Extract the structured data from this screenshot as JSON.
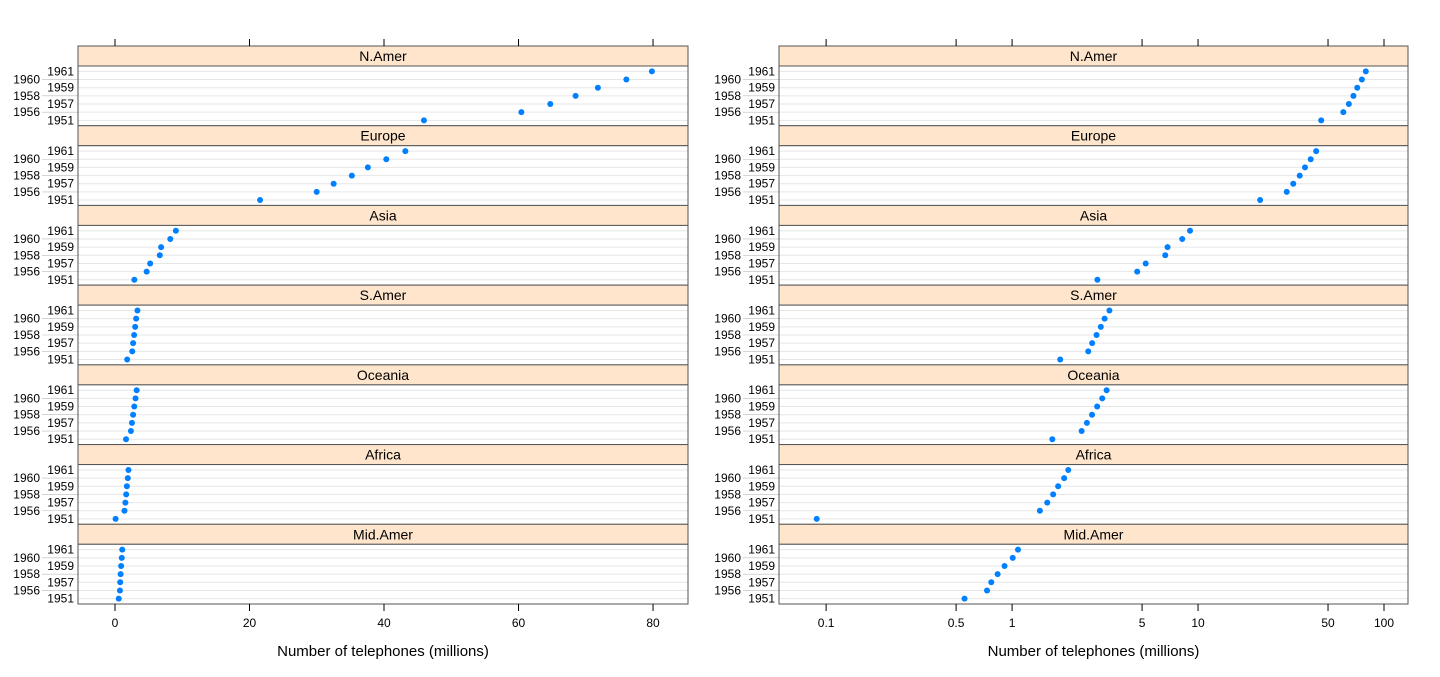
{
  "chart_data": [
    {
      "type": "scatter",
      "subtype": "dotplot",
      "scale": "linear",
      "xlabel": "Number of telephones (millions)",
      "xlim": [
        -5.5,
        85.2
      ],
      "xticks": [
        0,
        20,
        40,
        60,
        80
      ],
      "xtick_labels": [
        "0",
        "20",
        "40",
        "60",
        "80"
      ],
      "grid": "horizontal row lines",
      "panels": [
        "N.Amer",
        "Europe",
        "Asia",
        "S.Amer",
        "Oceania",
        "Africa",
        "Mid.Amer"
      ]
    },
    {
      "type": "scatter",
      "subtype": "dotplot",
      "scale": "log10",
      "xlabel": "Number of telephones (millions)",
      "xlim": [
        0.0558,
        134.6
      ],
      "xticks": [
        0.1,
        0.5,
        1,
        5,
        10,
        50,
        100
      ],
      "xtick_labels": [
        "0.1",
        "0.5",
        "1",
        "5",
        "10",
        "50",
        "100"
      ],
      "grid": "horizontal row lines",
      "panels": [
        "N.Amer",
        "Europe",
        "Asia",
        "S.Amer",
        "Oceania",
        "Africa",
        "Mid.Amer"
      ]
    }
  ],
  "years": [
    "1951",
    "1956",
    "1957",
    "1958",
    "1959",
    "1960",
    "1961"
  ],
  "series": [
    {
      "name": "N.Amer",
      "values": [
        45.939,
        60.423,
        64.721,
        68.484,
        71.799,
        76.036,
        79.831
      ]
    },
    {
      "name": "Europe",
      "values": [
        21.574,
        29.99,
        32.51,
        35.218,
        37.598,
        40.341,
        43.173
      ]
    },
    {
      "name": "Asia",
      "values": [
        2.876,
        4.708,
        5.23,
        6.662,
        6.856,
        8.22,
        9.053
      ]
    },
    {
      "name": "S.Amer",
      "values": [
        1.815,
        2.568,
        2.695,
        2.845,
        3.0,
        3.145,
        3.338
      ]
    },
    {
      "name": "Oceania",
      "values": [
        1.646,
        2.366,
        2.526,
        2.691,
        2.868,
        3.054,
        3.224
      ]
    },
    {
      "name": "Africa",
      "values": [
        0.089,
        1.411,
        1.546,
        1.663,
        1.769,
        1.905,
        2.005
      ]
    },
    {
      "name": "Mid.Amer",
      "values": [
        0.555,
        0.733,
        0.773,
        0.836,
        0.911,
        1.008,
        1.076
      ]
    }
  ],
  "colors": {
    "points": "#0080ff",
    "strip": "#ffe5cc",
    "border": "#555555",
    "grid": "#e6e6e6"
  }
}
